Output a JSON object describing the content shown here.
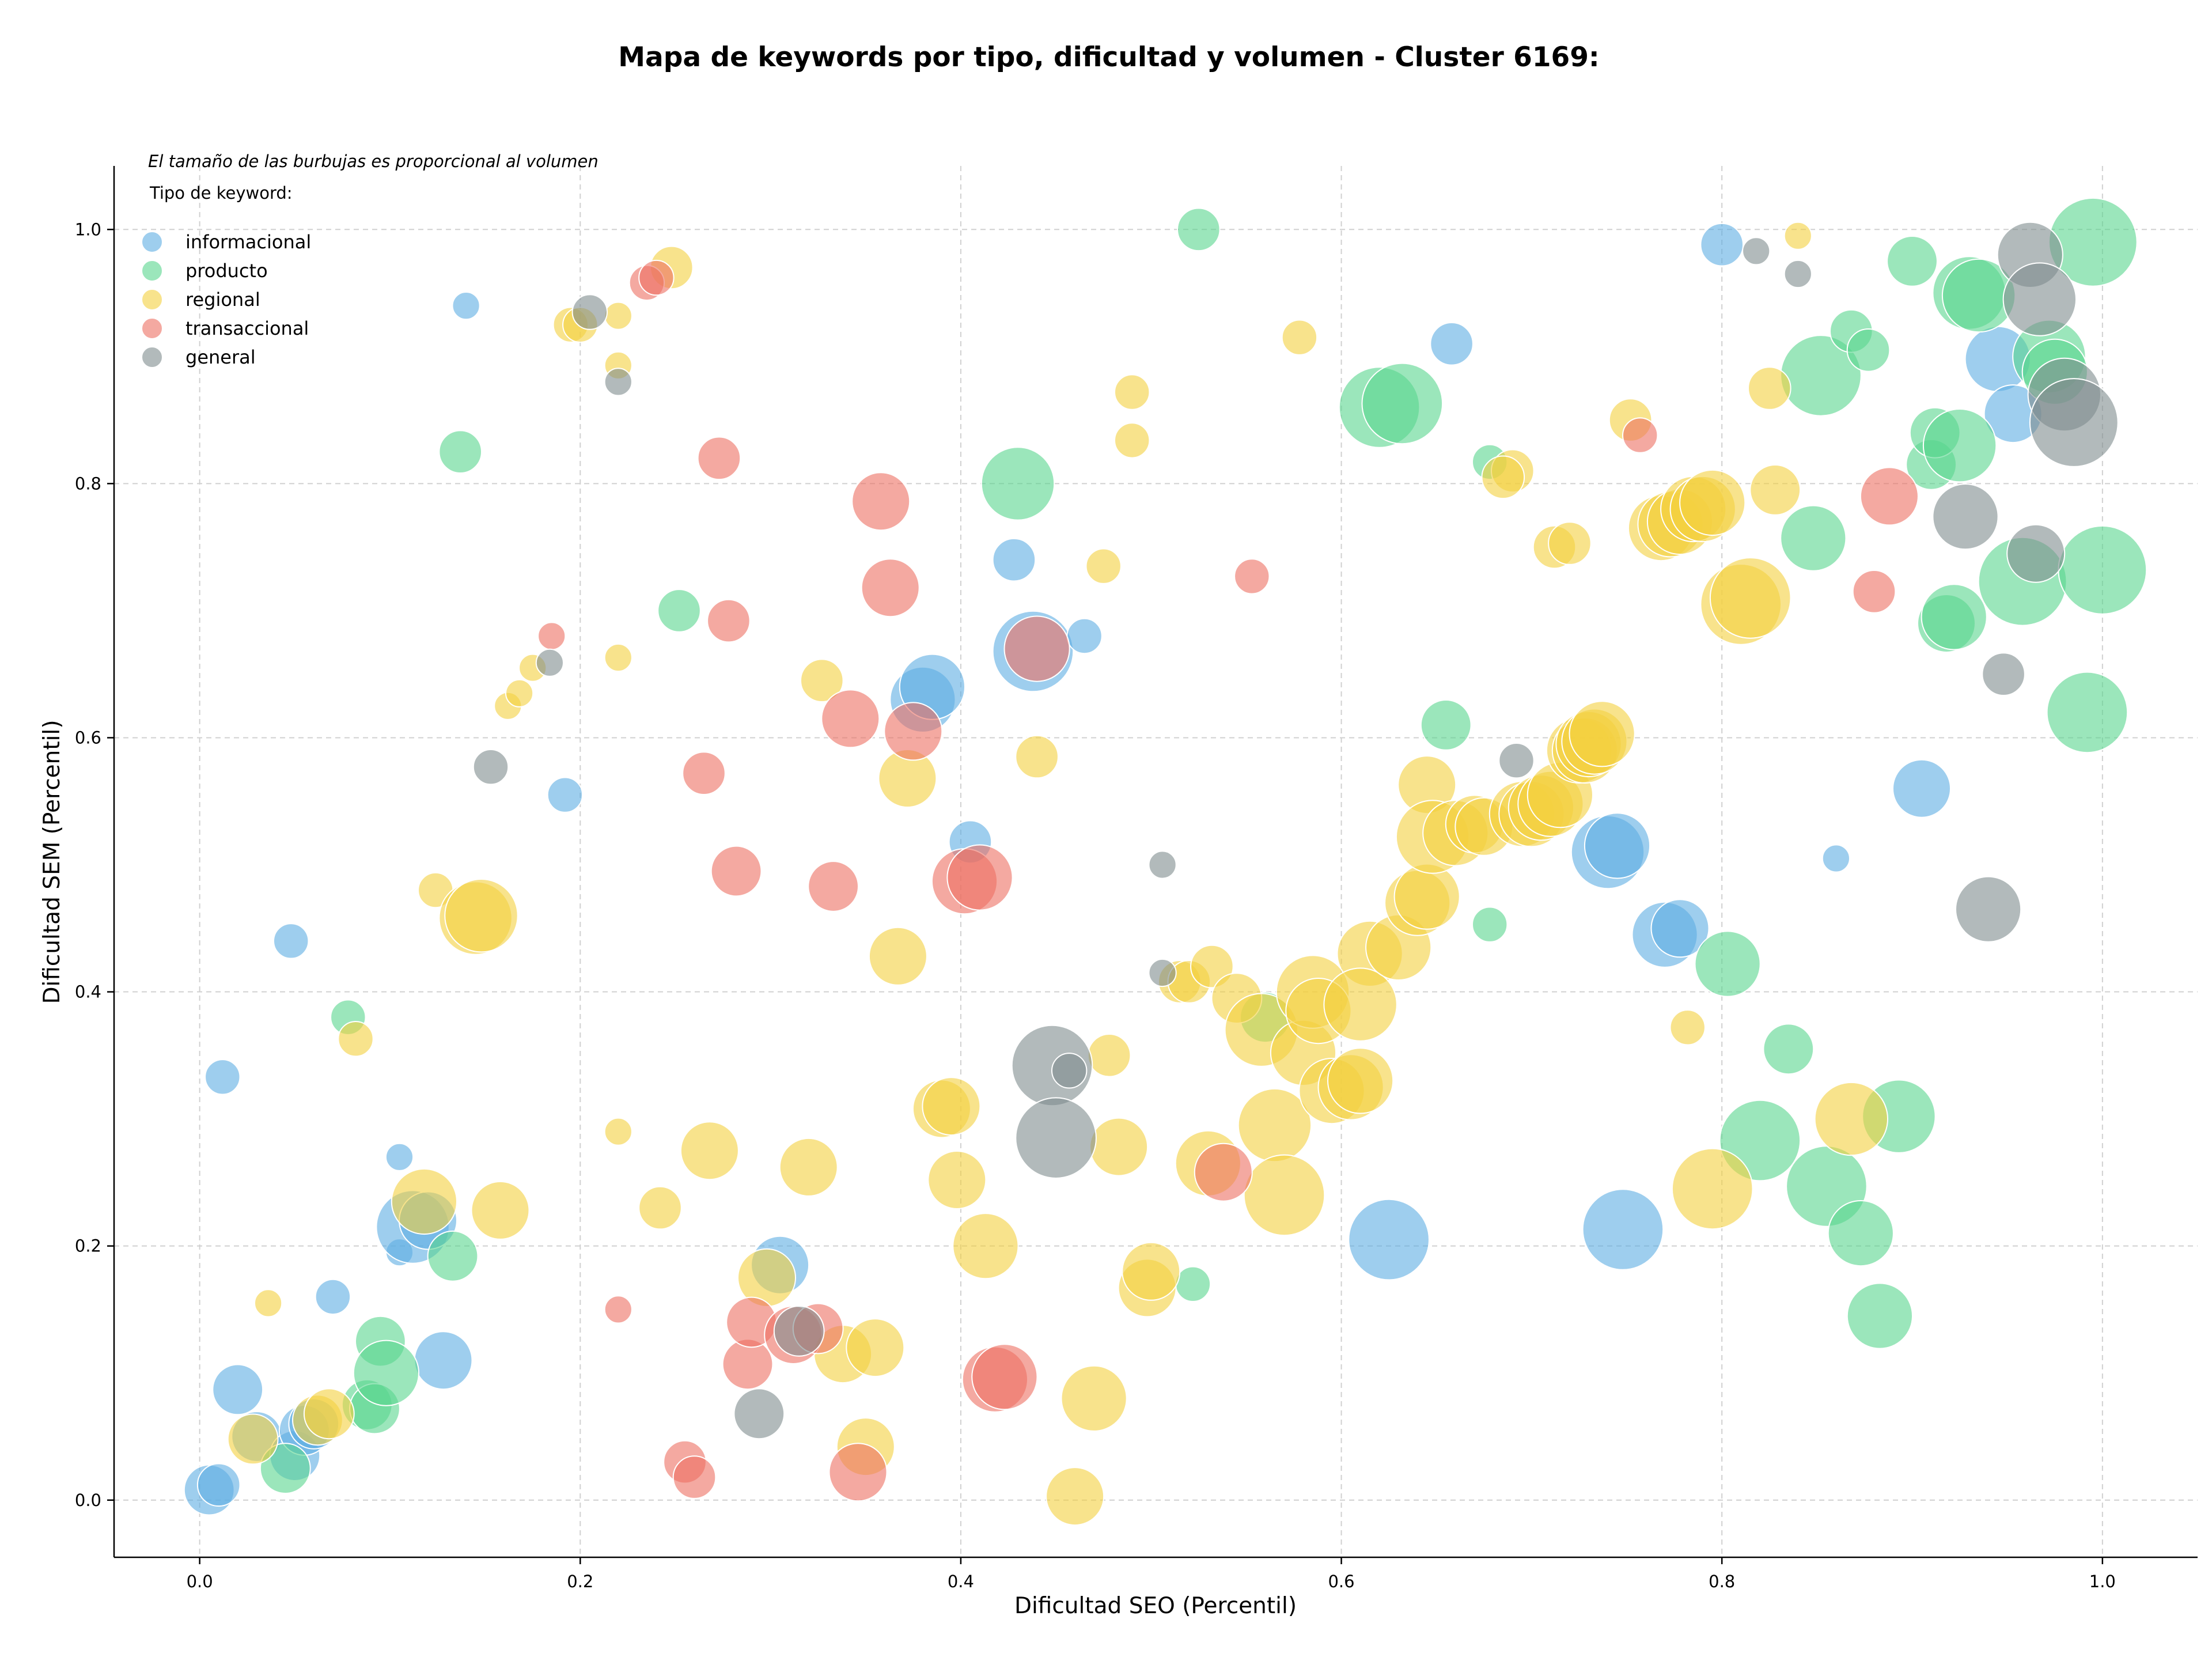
{
  "chart_data": {
    "type": "scatter",
    "title": "Mapa de keywords por tipo, dificultad y volumen - Cluster 6169:",
    "xlabel": "Dificultad SEO (Percentil)",
    "ylabel": "Dificultad SEM (Percentil)",
    "xlim": [
      -0.045,
      1.05
    ],
    "ylim": [
      -0.045,
      1.05
    ],
    "x_ticks": [
      "0.0",
      "0.2",
      "0.4",
      "0.6",
      "0.8",
      "1.0"
    ],
    "y_ticks": [
      "0.0",
      "0.2",
      "0.4",
      "0.6",
      "0.8",
      "1.0"
    ],
    "grid": true,
    "legend_note": "El tamaño de las burbujas es proporcional al volumen",
    "legend_title": "Tipo de keyword:",
    "legend_position": "top-left",
    "size_encoding": "volume (relative scale 1-10)",
    "series": [
      {
        "name": "informacional",
        "color": "#5dade2",
        "points": [
          [
            0.005,
            0.008,
            4
          ],
          [
            0.01,
            0.012,
            3
          ],
          [
            0.012,
            0.333,
            2
          ],
          [
            0.02,
            0.087,
            4
          ],
          [
            0.03,
            0.05,
            4
          ],
          [
            0.05,
            0.035,
            4
          ],
          [
            0.055,
            0.055,
            4
          ],
          [
            0.06,
            0.06,
            4
          ],
          [
            0.048,
            0.44,
            2
          ],
          [
            0.07,
            0.16,
            2
          ],
          [
            0.105,
            0.27,
            1
          ],
          [
            0.105,
            0.195,
            1
          ],
          [
            0.112,
            0.215,
            7
          ],
          [
            0.12,
            0.22,
            5
          ],
          [
            0.128,
            0.11,
            5
          ],
          [
            0.14,
            0.94,
            1
          ],
          [
            0.192,
            0.555,
            2
          ],
          [
            0.305,
            0.185,
            5
          ],
          [
            0.38,
            0.63,
            6
          ],
          [
            0.385,
            0.64,
            6
          ],
          [
            0.405,
            0.518,
            3
          ],
          [
            0.428,
            0.74,
            3
          ],
          [
            0.438,
            0.668,
            8
          ],
          [
            0.465,
            0.68,
            2
          ],
          [
            0.625,
            0.205,
            8
          ],
          [
            0.658,
            0.91,
            3
          ],
          [
            0.74,
            0.51,
            7
          ],
          [
            0.745,
            0.515,
            6
          ],
          [
            0.748,
            0.213,
            8
          ],
          [
            0.77,
            0.445,
            6
          ],
          [
            0.778,
            0.45,
            5
          ],
          [
            0.8,
            0.988,
            3
          ],
          [
            0.86,
            0.505,
            1
          ],
          [
            0.905,
            0.56,
            5
          ],
          [
            0.945,
            0.898,
            6
          ],
          [
            0.953,
            0.855,
            5
          ]
        ]
      },
      {
        "name": "producto",
        "color": "#58d68d",
        "points": [
          [
            0.045,
            0.025,
            4
          ],
          [
            0.078,
            0.38,
            2
          ],
          [
            0.088,
            0.075,
            4
          ],
          [
            0.092,
            0.072,
            4
          ],
          [
            0.095,
            0.125,
            4
          ],
          [
            0.098,
            0.1,
            6
          ],
          [
            0.133,
            0.192,
            4
          ],
          [
            0.137,
            0.825,
            3
          ],
          [
            0.252,
            0.7,
            3
          ],
          [
            0.43,
            0.8,
            7
          ],
          [
            0.522,
            0.17,
            2
          ],
          [
            0.525,
            1.0,
            3
          ],
          [
            0.56,
            0.38,
            4
          ],
          [
            0.62,
            0.86,
            8
          ],
          [
            0.632,
            0.863,
            8
          ],
          [
            0.655,
            0.61,
            4
          ],
          [
            0.678,
            0.453,
            2
          ],
          [
            0.678,
            0.817,
            2
          ],
          [
            0.803,
            0.422,
            6
          ],
          [
            0.82,
            0.283,
            8
          ],
          [
            0.835,
            0.355,
            4
          ],
          [
            0.848,
            0.757,
            6
          ],
          [
            0.852,
            0.885,
            8
          ],
          [
            0.855,
            0.247,
            8
          ],
          [
            0.868,
            0.92,
            3
          ],
          [
            0.873,
            0.21,
            6
          ],
          [
            0.877,
            0.905,
            3
          ],
          [
            0.883,
            0.145,
            6
          ],
          [
            0.893,
            0.302,
            7
          ],
          [
            0.9,
            0.975,
            4
          ],
          [
            0.91,
            0.815,
            4
          ],
          [
            0.912,
            0.84,
            4
          ],
          [
            0.918,
            0.69,
            5
          ],
          [
            0.922,
            0.695,
            6
          ],
          [
            0.925,
            0.83,
            7
          ],
          [
            0.93,
            0.95,
            7
          ],
          [
            0.935,
            0.948,
            7
          ],
          [
            0.958,
            0.723,
            9
          ],
          [
            0.972,
            0.9,
            7
          ],
          [
            0.975,
            0.888,
            6
          ],
          [
            0.992,
            0.62,
            8
          ],
          [
            0.995,
            0.99,
            9
          ],
          [
            1.0,
            0.732,
            9
          ]
        ]
      },
      {
        "name": "regional",
        "color": "#f4d03f",
        "points": [
          [
            0.028,
            0.048,
            4
          ],
          [
            0.036,
            0.155,
            1
          ],
          [
            0.062,
            0.063,
            4
          ],
          [
            0.068,
            0.068,
            4
          ],
          [
            0.082,
            0.363,
            2
          ],
          [
            0.118,
            0.235,
            6
          ],
          [
            0.124,
            0.48,
            2
          ],
          [
            0.145,
            0.458,
            7
          ],
          [
            0.148,
            0.46,
            7
          ],
          [
            0.158,
            0.228,
            5
          ],
          [
            0.162,
            0.625,
            1
          ],
          [
            0.168,
            0.635,
            1
          ],
          [
            0.175,
            0.655,
            1
          ],
          [
            0.195,
            0.925,
            2
          ],
          [
            0.2,
            0.925,
            2
          ],
          [
            0.22,
            0.932,
            1
          ],
          [
            0.22,
            0.893,
            1
          ],
          [
            0.22,
            0.663,
            1
          ],
          [
            0.22,
            0.29,
            1
          ],
          [
            0.242,
            0.23,
            3
          ],
          [
            0.248,
            0.97,
            3
          ],
          [
            0.268,
            0.275,
            5
          ],
          [
            0.298,
            0.175,
            5
          ],
          [
            0.32,
            0.262,
            5
          ],
          [
            0.327,
            0.645,
            3
          ],
          [
            0.338,
            0.115,
            5
          ],
          [
            0.35,
            0.042,
            5
          ],
          [
            0.355,
            0.12,
            5
          ],
          [
            0.372,
            0.568,
            5
          ],
          [
            0.367,
            0.428,
            5
          ],
          [
            0.39,
            0.308,
            5
          ],
          [
            0.395,
            0.31,
            5
          ],
          [
            0.398,
            0.252,
            5
          ],
          [
            0.413,
            0.2,
            6
          ],
          [
            0.44,
            0.585,
            3
          ],
          [
            0.47,
            0.08,
            6
          ],
          [
            0.46,
            0.003,
            5
          ],
          [
            0.475,
            0.735,
            2
          ],
          [
            0.478,
            0.35,
            3
          ],
          [
            0.483,
            0.278,
            5
          ],
          [
            0.49,
            0.872,
            2
          ],
          [
            0.49,
            0.834,
            2
          ],
          [
            0.498,
            0.167,
            5
          ],
          [
            0.5,
            0.18,
            5
          ],
          [
            0.515,
            0.408,
            3
          ],
          [
            0.52,
            0.408,
            3
          ],
          [
            0.53,
            0.265,
            6
          ],
          [
            0.532,
            0.42,
            3
          ],
          [
            0.545,
            0.395,
            4
          ],
          [
            0.558,
            0.37,
            7
          ],
          [
            0.565,
            0.295,
            7
          ],
          [
            0.57,
            0.24,
            8
          ],
          [
            0.578,
            0.915,
            2
          ],
          [
            0.58,
            0.352,
            6
          ],
          [
            0.585,
            0.4,
            7
          ],
          [
            0.588,
            0.385,
            6
          ],
          [
            0.595,
            0.322,
            6
          ],
          [
            0.605,
            0.325,
            6
          ],
          [
            0.61,
            0.33,
            6
          ],
          [
            0.615,
            0.43,
            6
          ],
          [
            0.61,
            0.39,
            7
          ],
          [
            0.63,
            0.435,
            6
          ],
          [
            0.64,
            0.47,
            6
          ],
          [
            0.645,
            0.475,
            6
          ],
          [
            0.645,
            0.563,
            5
          ],
          [
            0.648,
            0.522,
            7
          ],
          [
            0.66,
            0.525,
            6
          ],
          [
            0.67,
            0.532,
            5
          ],
          [
            0.675,
            0.53,
            5
          ],
          [
            0.69,
            0.81,
            3
          ],
          [
            0.685,
            0.805,
            3
          ],
          [
            0.695,
            0.54,
            6
          ],
          [
            0.7,
            0.54,
            6
          ],
          [
            0.705,
            0.545,
            6
          ],
          [
            0.71,
            0.548,
            6
          ],
          [
            0.715,
            0.555,
            6
          ],
          [
            0.712,
            0.75,
            3
          ],
          [
            0.72,
            0.753,
            3
          ],
          [
            0.725,
            0.59,
            6
          ],
          [
            0.728,
            0.59,
            6
          ],
          [
            0.73,
            0.595,
            6
          ],
          [
            0.733,
            0.597,
            6
          ],
          [
            0.737,
            0.603,
            6
          ],
          [
            0.752,
            0.85,
            3
          ],
          [
            0.768,
            0.765,
            6
          ],
          [
            0.773,
            0.768,
            6
          ],
          [
            0.778,
            0.77,
            6
          ],
          [
            0.785,
            0.78,
            6
          ],
          [
            0.79,
            0.78,
            6
          ],
          [
            0.795,
            0.785,
            6
          ],
          [
            0.782,
            0.372,
            2
          ],
          [
            0.795,
            0.245,
            8
          ],
          [
            0.81,
            0.705,
            8
          ],
          [
            0.815,
            0.71,
            8
          ],
          [
            0.825,
            0.875,
            3
          ],
          [
            0.828,
            0.795,
            4
          ],
          [
            0.84,
            0.995,
            1
          ],
          [
            0.868,
            0.3,
            7
          ]
        ]
      },
      {
        "name": "transaccional",
        "color": "#ec7063",
        "points": [
          [
            0.185,
            0.68,
            1
          ],
          [
            0.22,
            0.15,
            1
          ],
          [
            0.235,
            0.958,
            2
          ],
          [
            0.24,
            0.962,
            2
          ],
          [
            0.255,
            0.03,
            3
          ],
          [
            0.26,
            0.018,
            3
          ],
          [
            0.265,
            0.572,
            3
          ],
          [
            0.273,
            0.82,
            3
          ],
          [
            0.278,
            0.692,
            3
          ],
          [
            0.282,
            0.495,
            4
          ],
          [
            0.288,
            0.107,
            4
          ],
          [
            0.29,
            0.14,
            4
          ],
          [
            0.312,
            0.13,
            5
          ],
          [
            0.325,
            0.135,
            4
          ],
          [
            0.333,
            0.483,
            4
          ],
          [
            0.342,
            0.615,
            5
          ],
          [
            0.346,
            0.022,
            5
          ],
          [
            0.358,
            0.786,
            5
          ],
          [
            0.363,
            0.718,
            5
          ],
          [
            0.375,
            0.605,
            5
          ],
          [
            0.402,
            0.487,
            6
          ],
          [
            0.41,
            0.49,
            6
          ],
          [
            0.418,
            0.095,
            6
          ],
          [
            0.423,
            0.097,
            6
          ],
          [
            0.44,
            0.67,
            6
          ],
          [
            0.538,
            0.258,
            5
          ],
          [
            0.553,
            0.727,
            2
          ],
          [
            0.757,
            0.838,
            2
          ],
          [
            0.88,
            0.715,
            3
          ],
          [
            0.888,
            0.79,
            5
          ]
        ]
      },
      {
        "name": "general",
        "color": "#7f8c8d",
        "points": [
          [
            0.153,
            0.577,
            2
          ],
          [
            0.184,
            0.659,
            1
          ],
          [
            0.205,
            0.935,
            2
          ],
          [
            0.22,
            0.88,
            1
          ],
          [
            0.294,
            0.068,
            4
          ],
          [
            0.315,
            0.133,
            4
          ],
          [
            0.448,
            0.342,
            8
          ],
          [
            0.45,
            0.285,
            8
          ],
          [
            0.457,
            0.338,
            2
          ],
          [
            0.506,
            0.5,
            1
          ],
          [
            0.506,
            0.415,
            1
          ],
          [
            0.692,
            0.582,
            2
          ],
          [
            0.818,
            0.983,
            1
          ],
          [
            0.84,
            0.965,
            1
          ],
          [
            0.928,
            0.774,
            6
          ],
          [
            0.94,
            0.465,
            6
          ],
          [
            0.948,
            0.65,
            3
          ],
          [
            0.962,
            0.98,
            6
          ],
          [
            0.965,
            0.745,
            5
          ],
          [
            0.967,
            0.945,
            7
          ],
          [
            0.98,
            0.87,
            7
          ],
          [
            0.985,
            0.848,
            9
          ]
        ]
      }
    ]
  }
}
